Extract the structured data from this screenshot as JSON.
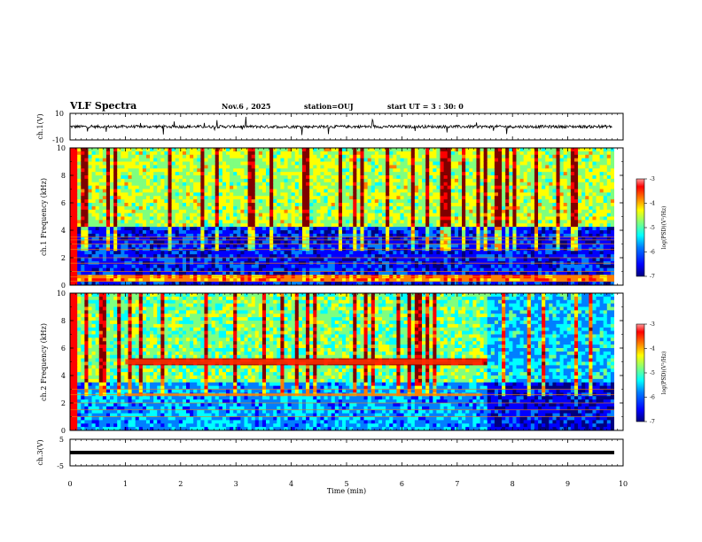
{
  "header": {
    "title": "VLF Spectra",
    "date": "Nov.6 , 2025",
    "station": "station=OUJ",
    "start": "start UT = 3 : 30: 0"
  },
  "chart_data": [
    {
      "type": "line",
      "panel": "ch1-waveform",
      "ylabel": "ch.1(V)",
      "yticks": [
        "10",
        "-10"
      ],
      "ylim": [
        -10,
        10
      ],
      "xlim": [
        0,
        10
      ],
      "data_extent_min": [
        0,
        9.8
      ],
      "series": [
        {
          "description_level": 0
        }
      ]
    },
    {
      "type": "heatmap",
      "panel": "ch1-spectrogram",
      "ylabel": "ch.1 Frequency (kHz)",
      "yticks": [
        "0",
        "2",
        "4",
        "6",
        "8",
        "10"
      ],
      "ylim": [
        0,
        10
      ],
      "xlim": [
        0,
        10
      ],
      "colorbar": {
        "label": "log(PSD)(V²/Hz)",
        "ticks": [
          "-3",
          "-4",
          "-5",
          "-6",
          "-7"
        ],
        "range": [
          -7,
          -3
        ]
      },
      "features": {
        "low_band_khz": [
          0,
          4.3
        ],
        "low_band_level": -6.3,
        "upper_band_level": -4.8,
        "horizontal_lines_khz": [
          0.3,
          0.6,
          1.0,
          1.6,
          2.0,
          2.6,
          3.0,
          3.3,
          3.5
        ]
      }
    },
    {
      "type": "heatmap",
      "panel": "ch2-spectrogram",
      "ylabel": "ch.2 Frequency (kHz)",
      "yticks": [
        "0",
        "2",
        "4",
        "6",
        "8",
        "10"
      ],
      "ylim": [
        0,
        10
      ],
      "xlim": [
        0,
        10
      ],
      "colorbar": {
        "label": "log(PSD)(V²/Hz)",
        "ticks": [
          "-3",
          "-4",
          "-5",
          "-6",
          "-7"
        ],
        "range": [
          -7,
          -3
        ]
      },
      "features": {
        "emission_band": {
          "freq_khz": 5.0,
          "t_start_min": 1.0,
          "t_end_min": 7.45
        },
        "secondary_band": {
          "freq_khz": 2.6,
          "t_start_min": 1.0,
          "t_end_min": 7.45
        },
        "quiet_band_after_min": 7.45,
        "horizontal_lines_khz": [
          1.0,
          1.5,
          2.0,
          2.6,
          3.0
        ]
      }
    },
    {
      "type": "line",
      "panel": "ch3-waveform",
      "ylabel": "ch.3(V)",
      "yticks": [
        "5",
        "-5"
      ],
      "ylim": [
        -5,
        5
      ],
      "xlim": [
        0,
        10
      ],
      "series": [
        {
          "constant_value": 0
        }
      ]
    }
  ],
  "xaxis": {
    "label": "Time (min)",
    "ticks": [
      "0",
      "1",
      "2",
      "3",
      "4",
      "5",
      "6",
      "7",
      "8",
      "9",
      "10"
    ]
  },
  "colors": {
    "scale": [
      "#00007f",
      "#0000ff",
      "#007fff",
      "#00ffff",
      "#7fff7f",
      "#ffff00",
      "#ff7f00",
      "#ff0000",
      "#7f0000"
    ]
  }
}
